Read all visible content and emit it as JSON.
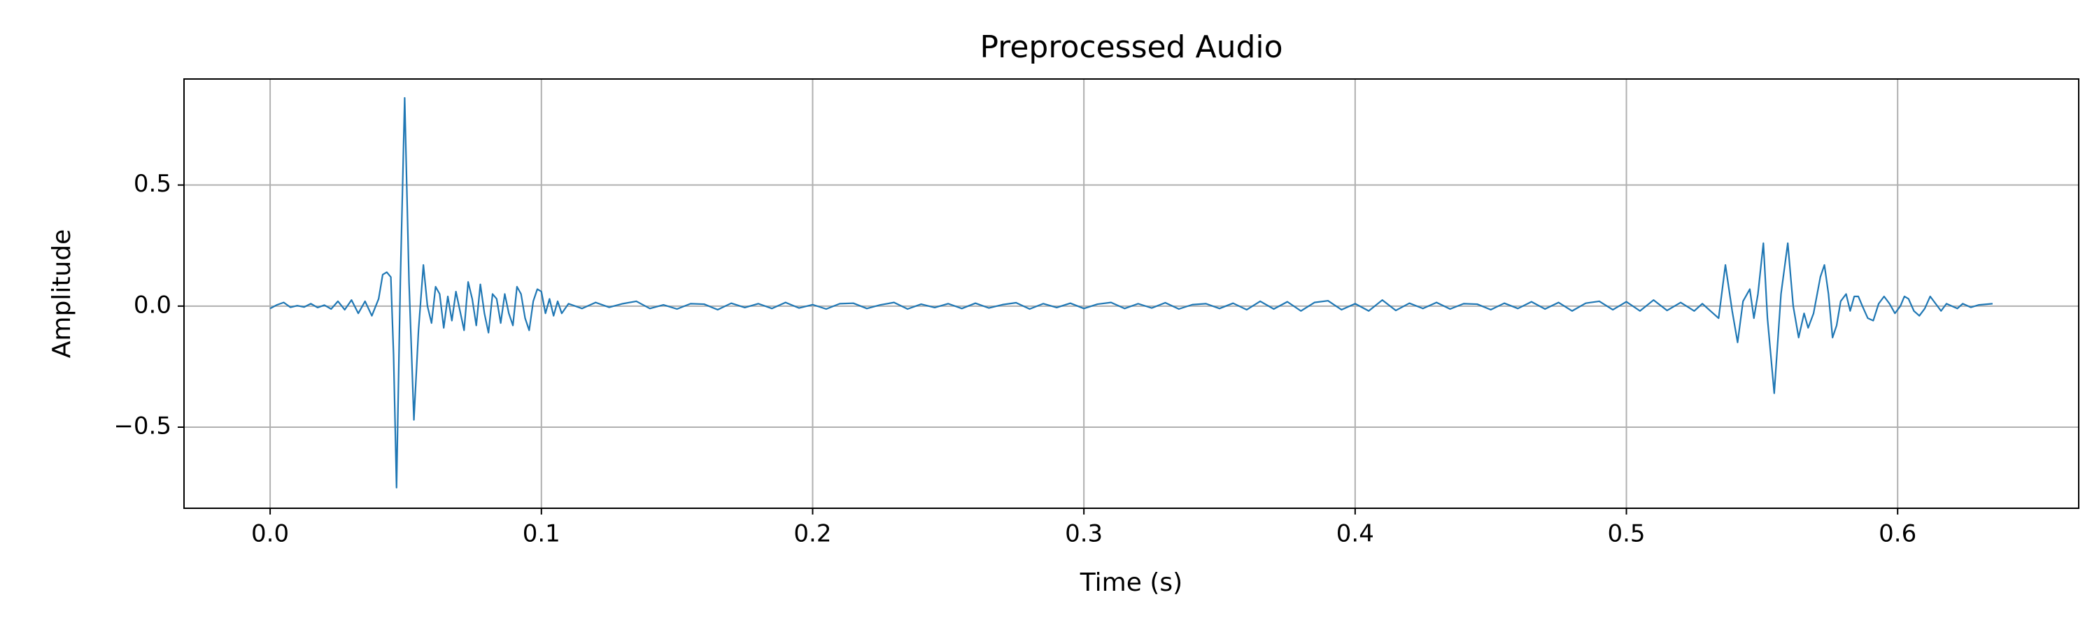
{
  "chart_data": {
    "type": "line",
    "title": "Preprocessed Audio",
    "x_label": "Time (s)",
    "y_label": "Amplitude",
    "color": "#1f77b4",
    "grid": true,
    "xlim": [
      -0.03175,
      0.66675
    ],
    "ylim": [
      -0.835,
      0.938
    ],
    "xticks": [
      {
        "value": 0,
        "label": "0.0"
      },
      0.1,
      0.2,
      0.3,
      0.4,
      0.5,
      0.6
    ],
    "yticks": [
      {
        "value": -0.5,
        "label": "−0.5"
      },
      {
        "value": 0,
        "label": "0.0"
      },
      0.5
    ],
    "x": [
      0,
      0.0025,
      0.005,
      0.0075,
      0.01,
      0.0125,
      0.015,
      0.0175,
      0.02,
      0.0225,
      0.025,
      0.0275,
      0.03,
      0.0325,
      0.035,
      0.0375,
      0.04,
      0.0415,
      0.043,
      0.0445,
      0.0455,
      0.0466,
      0.048,
      0.0496,
      0.0512,
      0.053,
      0.0547,
      0.0565,
      0.058,
      0.0595,
      0.061,
      0.0625,
      0.064,
      0.0655,
      0.067,
      0.0685,
      0.07,
      0.0715,
      0.073,
      0.0745,
      0.076,
      0.0775,
      0.079,
      0.0805,
      0.082,
      0.0835,
      0.085,
      0.0865,
      0.088,
      0.0895,
      0.091,
      0.0925,
      0.094,
      0.0955,
      0.097,
      0.0985,
      0.1,
      0.1015,
      0.103,
      0.1045,
      0.106,
      0.1075,
      0.11,
      0.115,
      0.12,
      0.125,
      0.13,
      0.135,
      0.14,
      0.145,
      0.15,
      0.155,
      0.16,
      0.165,
      0.17,
      0.175,
      0.18,
      0.185,
      0.19,
      0.195,
      0.2,
      0.205,
      0.21,
      0.215,
      0.22,
      0.225,
      0.23,
      0.235,
      0.24,
      0.245,
      0.25,
      0.255,
      0.26,
      0.265,
      0.27,
      0.275,
      0.28,
      0.285,
      0.29,
      0.295,
      0.3,
      0.305,
      0.31,
      0.315,
      0.32,
      0.325,
      0.33,
      0.335,
      0.34,
      0.345,
      0.35,
      0.355,
      0.36,
      0.365,
      0.37,
      0.375,
      0.38,
      0.385,
      0.39,
      0.395,
      0.4,
      0.405,
      0.41,
      0.415,
      0.42,
      0.425,
      0.43,
      0.435,
      0.44,
      0.445,
      0.45,
      0.455,
      0.46,
      0.465,
      0.47,
      0.475,
      0.48,
      0.485,
      0.49,
      0.495,
      0.5,
      0.505,
      0.51,
      0.515,
      0.52,
      0.525,
      0.528,
      0.531,
      0.534,
      0.5365,
      0.539,
      0.541,
      0.543,
      0.5455,
      0.547,
      0.5485,
      0.5505,
      0.552,
      0.5545,
      0.557,
      0.5595,
      0.5615,
      0.5635,
      0.5655,
      0.567,
      0.569,
      0.5715,
      0.573,
      0.5745,
      0.576,
      0.5775,
      0.579,
      0.581,
      0.5825,
      0.584,
      0.5855,
      0.587,
      0.589,
      0.591,
      0.593,
      0.595,
      0.597,
      0.599,
      0.601,
      0.6025,
      0.604,
      0.606,
      0.608,
      0.61,
      0.612,
      0.614,
      0.616,
      0.618,
      0.62,
      0.622,
      0.624,
      0.627,
      0.63,
      0.635
    ],
    "values": [
      -0.01,
      0.005,
      0.015,
      -0.005,
      0.002,
      -0.004,
      0.01,
      -0.006,
      0.004,
      -0.012,
      0.02,
      -0.015,
      0.025,
      -0.03,
      0.02,
      -0.04,
      0.03,
      0.13,
      0.14,
      0.12,
      -0.2,
      -0.75,
      0.1,
      0.86,
      0.1,
      -0.47,
      -0.1,
      0.17,
      0,
      -0.07,
      0.08,
      0.05,
      -0.09,
      0.04,
      -0.06,
      0.06,
      -0.02,
      -0.1,
      0.1,
      0.03,
      -0.08,
      0.09,
      -0.03,
      -0.11,
      0.05,
      0.03,
      -0.07,
      0.05,
      -0.03,
      -0.08,
      0.08,
      0.05,
      -0.05,
      -0.1,
      0.02,
      0.07,
      0.06,
      -0.03,
      0.03,
      -0.04,
      0.02,
      -0.03,
      0.01,
      -0.01,
      0.015,
      -0.005,
      0.01,
      0.02,
      -0.01,
      0.005,
      -0.012,
      0.01,
      0.008,
      -0.015,
      0.012,
      -0.006,
      0.01,
      -0.01,
      0.015,
      -0.008,
      0.006,
      -0.012,
      0.01,
      0.012,
      -0.01,
      0.005,
      0.015,
      -0.012,
      0.008,
      -0.006,
      0.01,
      -0.01,
      0.012,
      -0.008,
      0.006,
      0.014,
      -0.012,
      0.01,
      -0.006,
      0.012,
      -0.01,
      0.008,
      0.015,
      -0.01,
      0.01,
      -0.008,
      0.014,
      -0.012,
      0.006,
      0.01,
      -0.01,
      0.012,
      -0.015,
      0.02,
      -0.012,
      0.018,
      -0.02,
      0.015,
      0.022,
      -0.015,
      0.01,
      -0.02,
      0.025,
      -0.018,
      0.012,
      -0.01,
      0.015,
      -0.012,
      0.01,
      0.008,
      -0.015,
      0.012,
      -0.01,
      0.018,
      -0.012,
      0.015,
      -0.02,
      0.012,
      0.02,
      -0.015,
      0.018,
      -0.02,
      0.025,
      -0.018,
      0.015,
      -0.02,
      0.01,
      -0.02,
      -0.05,
      0.17,
      -0.02,
      -0.15,
      0.02,
      0.07,
      -0.05,
      0.05,
      0.26,
      -0.05,
      -0.36,
      0.05,
      0.26,
      0,
      -0.13,
      -0.03,
      -0.09,
      -0.03,
      0.12,
      0.17,
      0.05,
      -0.13,
      -0.08,
      0.02,
      0.05,
      -0.02,
      0.04,
      0.04,
      0,
      -0.05,
      -0.06,
      0.01,
      0.04,
      0.01,
      -0.03,
      0,
      0.04,
      0.03,
      -0.02,
      -0.04,
      -0.01,
      0.04,
      0.01,
      -0.02,
      0.01,
      0,
      -0.01,
      0.01,
      -0.005,
      0.005,
      0.01
    ]
  }
}
